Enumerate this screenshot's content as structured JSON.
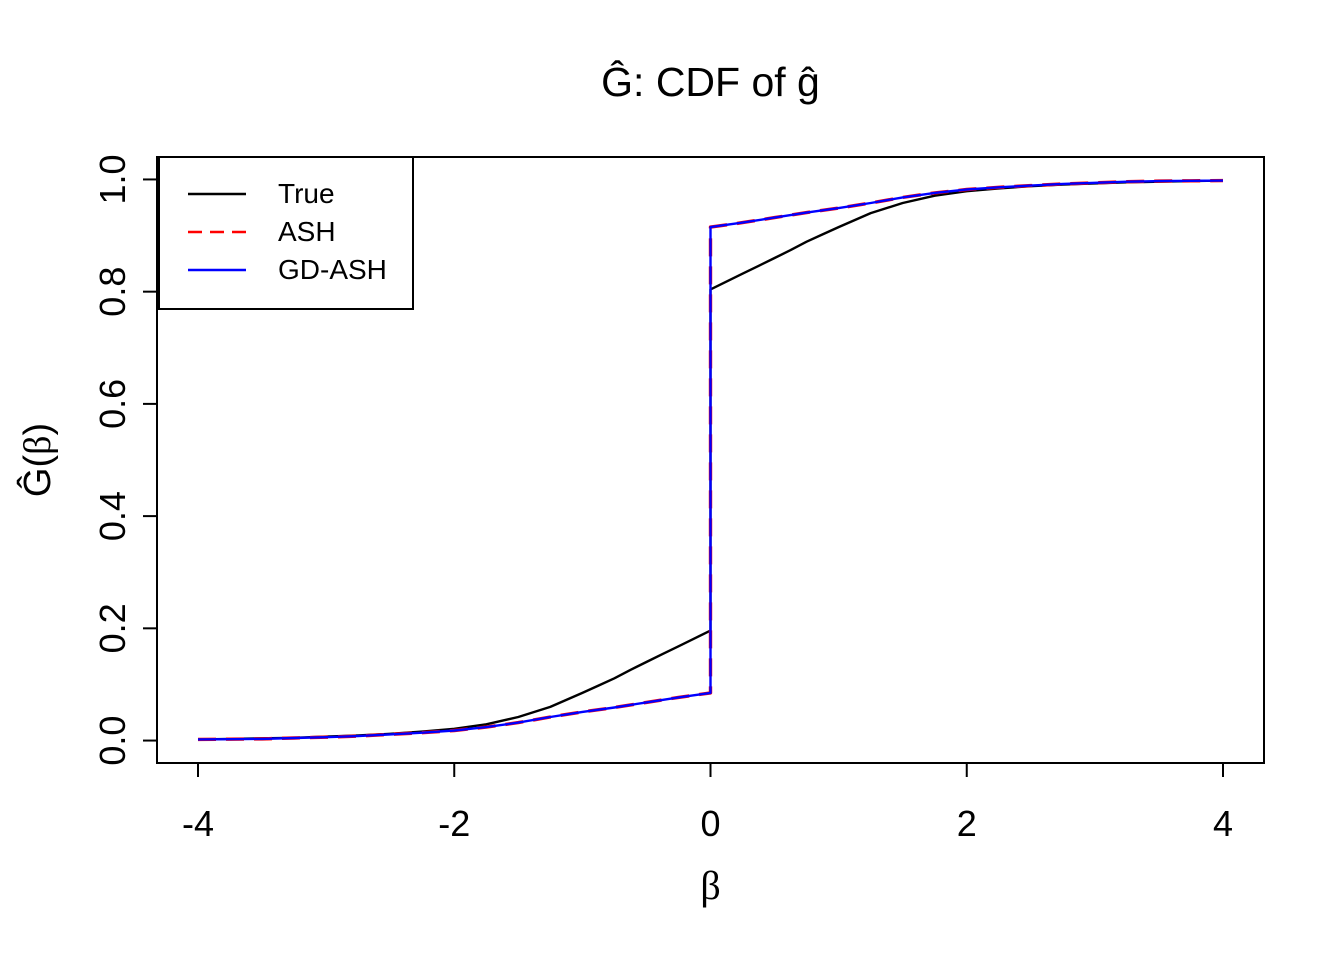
{
  "figure": {
    "title": "Ĝ: CDF of ĝ",
    "x_label": "β",
    "y_label_parts": [
      "Ĝ(",
      "β",
      ")"
    ]
  },
  "legend": {
    "items": [
      {
        "label": "True",
        "color": "#000000",
        "style": "solid"
      },
      {
        "label": "ASH",
        "color": "#FF0000",
        "style": "dashed"
      },
      {
        "label": "GD-ASH",
        "color": "#0000FF",
        "style": "solid"
      }
    ]
  },
  "chart_data": {
    "type": "line",
    "title": "Ĝ: CDF of ĝ",
    "xlabel": "β",
    "ylabel": "Ĝ(β)",
    "xlim": [
      -4,
      4
    ],
    "ylim": [
      0,
      1
    ],
    "x_ticks": [
      -4,
      -2,
      0,
      2,
      4
    ],
    "x_tick_labels": [
      "-4",
      "-2",
      "0",
      "2",
      "4"
    ],
    "y_ticks": [
      0.0,
      0.2,
      0.4,
      0.6,
      0.8,
      1.0
    ],
    "y_tick_labels": [
      "0.0",
      "0.2",
      "0.4",
      "0.6",
      "0.8",
      "1.0"
    ],
    "grid": false,
    "legend_position": "top-left",
    "notes": "True CDF jumps from 0.196 to 0.804 at beta=0 (point mass ~0.6). ASH and GD-ASH overlap exactly (red dashed hidden under blue), jumping from 0.085 to 0.915 at beta=0.",
    "series": [
      {
        "name": "True",
        "color": "#000000",
        "line_style": "solid",
        "points": [
          [
            -4,
            0.002
          ],
          [
            -3.75,
            0.003
          ],
          [
            -3.5,
            0.004
          ],
          [
            -3.25,
            0.005
          ],
          [
            -3,
            0.007
          ],
          [
            -2.75,
            0.009
          ],
          [
            -2.5,
            0.012
          ],
          [
            -2.25,
            0.016
          ],
          [
            -2,
            0.021
          ],
          [
            -1.75,
            0.029
          ],
          [
            -1.5,
            0.042
          ],
          [
            -1.25,
            0.06
          ],
          [
            -1,
            0.085
          ],
          [
            -0.875,
            0.098
          ],
          [
            -0.75,
            0.111
          ],
          [
            -0.625,
            0.126
          ],
          [
            -0.5,
            0.14
          ],
          [
            -0.375,
            0.154
          ],
          [
            -0.25,
            0.168
          ],
          [
            -0.125,
            0.182
          ],
          [
            0,
            0.196
          ],
          [
            0,
            0.804
          ],
          [
            0.125,
            0.818
          ],
          [
            0.25,
            0.832
          ],
          [
            0.375,
            0.846
          ],
          [
            0.5,
            0.86
          ],
          [
            0.625,
            0.874
          ],
          [
            0.75,
            0.889
          ],
          [
            0.875,
            0.902
          ],
          [
            1,
            0.915
          ],
          [
            1.25,
            0.94
          ],
          [
            1.5,
            0.958
          ],
          [
            1.75,
            0.971
          ],
          [
            2,
            0.979
          ],
          [
            2.25,
            0.984
          ],
          [
            2.5,
            0.988
          ],
          [
            2.75,
            0.991
          ],
          [
            3,
            0.993
          ],
          [
            3.25,
            0.995
          ],
          [
            3.5,
            0.996
          ],
          [
            3.75,
            0.997
          ],
          [
            4,
            0.998
          ]
        ]
      },
      {
        "name": "ASH",
        "color": "#FF0000",
        "line_style": "dashed",
        "points": [
          [
            -4,
            0.002
          ],
          [
            -3.75,
            0.0025
          ],
          [
            -3.5,
            0.003
          ],
          [
            -3.25,
            0.0045
          ],
          [
            -3,
            0.006
          ],
          [
            -2.75,
            0.008
          ],
          [
            -2.5,
            0.011
          ],
          [
            -2.25,
            0.014
          ],
          [
            -2,
            0.018
          ],
          [
            -1.75,
            0.024
          ],
          [
            -1.5,
            0.032
          ],
          [
            -1.25,
            0.042
          ],
          [
            -1,
            0.051
          ],
          [
            -0.75,
            0.059
          ],
          [
            -0.5,
            0.068
          ],
          [
            -0.25,
            0.077
          ],
          [
            0,
            0.085
          ],
          [
            0,
            0.915
          ],
          [
            0.25,
            0.923
          ],
          [
            0.5,
            0.932
          ],
          [
            0.75,
            0.941
          ],
          [
            1,
            0.949
          ],
          [
            1.25,
            0.958
          ],
          [
            1.5,
            0.968
          ],
          [
            1.75,
            0.976
          ],
          [
            2,
            0.982
          ],
          [
            2.25,
            0.986
          ],
          [
            2.5,
            0.989
          ],
          [
            2.75,
            0.992
          ],
          [
            3,
            0.994
          ],
          [
            3.25,
            0.996
          ],
          [
            3.5,
            0.997
          ],
          [
            3.75,
            0.9975
          ],
          [
            4,
            0.998
          ]
        ]
      },
      {
        "name": "GD-ASH",
        "color": "#0000FF",
        "line_style": "solid",
        "points": [
          [
            -4,
            0.002
          ],
          [
            -3.75,
            0.0025
          ],
          [
            -3.5,
            0.003
          ],
          [
            -3.25,
            0.0045
          ],
          [
            -3,
            0.006
          ],
          [
            -2.75,
            0.008
          ],
          [
            -2.5,
            0.011
          ],
          [
            -2.25,
            0.014
          ],
          [
            -2,
            0.018
          ],
          [
            -1.75,
            0.024
          ],
          [
            -1.5,
            0.032
          ],
          [
            -1.25,
            0.042
          ],
          [
            -1,
            0.051
          ],
          [
            -0.75,
            0.059
          ],
          [
            -0.5,
            0.068
          ],
          [
            -0.25,
            0.077
          ],
          [
            0,
            0.085
          ],
          [
            0,
            0.915
          ],
          [
            0.25,
            0.923
          ],
          [
            0.5,
            0.932
          ],
          [
            0.75,
            0.941
          ],
          [
            1,
            0.949
          ],
          [
            1.25,
            0.958
          ],
          [
            1.5,
            0.968
          ],
          [
            1.75,
            0.976
          ],
          [
            2,
            0.982
          ],
          [
            2.25,
            0.986
          ],
          [
            2.5,
            0.989
          ],
          [
            2.75,
            0.992
          ],
          [
            3,
            0.994
          ],
          [
            3.25,
            0.996
          ],
          [
            3.5,
            0.997
          ],
          [
            3.75,
            0.9975
          ],
          [
            4,
            0.998
          ]
        ]
      }
    ]
  }
}
